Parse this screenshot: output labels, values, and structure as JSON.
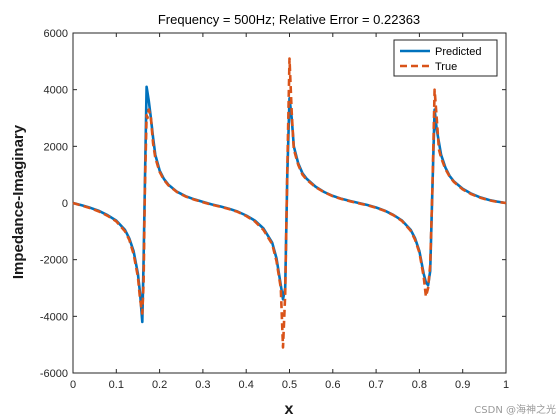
{
  "chart_data": {
    "type": "line",
    "title": "Frequency = 500Hz; Relative Error = 0.22363",
    "xlabel": "x",
    "ylabel": "Impedance-Imaginary",
    "xlim": [
      0,
      1
    ],
    "ylim": [
      -6000,
      6000
    ],
    "xticks": [
      0,
      0.1,
      0.2,
      0.3,
      0.4,
      0.5,
      0.6,
      0.7,
      0.8,
      0.9,
      1
    ],
    "xtick_labels": [
      "0",
      "0.1",
      "0.2",
      "0.3",
      "0.4",
      "0.5",
      "0.6",
      "0.7",
      "0.8",
      "0.9",
      "1"
    ],
    "yticks": [
      -6000,
      -4000,
      -2000,
      0,
      2000,
      4000,
      6000
    ],
    "ytick_labels": [
      "-6000",
      "-4000",
      "-2000",
      "0",
      "2000",
      "4000",
      "6000"
    ],
    "grid": false,
    "legend": "top-right",
    "series": [
      {
        "name": "Predicted",
        "style": "solid",
        "color": "#0072BD",
        "x": [
          0,
          0.02,
          0.04,
          0.06,
          0.08,
          0.1,
          0.12,
          0.13,
          0.14,
          0.15,
          0.155,
          0.16,
          0.163,
          0.166,
          0.17,
          0.175,
          0.18,
          0.185,
          0.19,
          0.2,
          0.21,
          0.22,
          0.24,
          0.26,
          0.28,
          0.3,
          0.32,
          0.34,
          0.36,
          0.38,
          0.4,
          0.42,
          0.44,
          0.46,
          0.47,
          0.48,
          0.485,
          0.49,
          0.495,
          0.5,
          0.505,
          0.51,
          0.52,
          0.53,
          0.54,
          0.56,
          0.58,
          0.6,
          0.62,
          0.64,
          0.66,
          0.68,
          0.7,
          0.72,
          0.74,
          0.76,
          0.78,
          0.79,
          0.8,
          0.81,
          0.815,
          0.82,
          0.825,
          0.83,
          0.835,
          0.84,
          0.85,
          0.86,
          0.87,
          0.88,
          0.9,
          0.92,
          0.94,
          0.96,
          0.98,
          1
        ],
        "y": [
          0,
          -80,
          -170,
          -280,
          -430,
          -620,
          -950,
          -1250,
          -1700,
          -2500,
          -3200,
          -4200,
          -2000,
          700,
          4100,
          3600,
          3000,
          2300,
          1700,
          1150,
          850,
          650,
          400,
          240,
          130,
          40,
          -50,
          -120,
          -200,
          -300,
          -440,
          -620,
          -900,
          -1400,
          -1950,
          -2900,
          -3400,
          -3000,
          1000,
          3700,
          3000,
          2000,
          1400,
          1050,
          850,
          580,
          390,
          250,
          150,
          70,
          0,
          -70,
          -160,
          -270,
          -420,
          -620,
          -950,
          -1250,
          -1700,
          -2500,
          -2800,
          -2900,
          -2400,
          500,
          3300,
          2600,
          1700,
          1250,
          950,
          760,
          500,
          330,
          200,
          110,
          50,
          0
        ]
      },
      {
        "name": "True",
        "style": "dashed",
        "color": "#D95319",
        "x": [
          0,
          0.02,
          0.04,
          0.06,
          0.08,
          0.1,
          0.12,
          0.13,
          0.14,
          0.15,
          0.155,
          0.16,
          0.163,
          0.166,
          0.17,
          0.172,
          0.175,
          0.18,
          0.185,
          0.19,
          0.2,
          0.21,
          0.22,
          0.24,
          0.26,
          0.28,
          0.3,
          0.32,
          0.34,
          0.36,
          0.38,
          0.4,
          0.42,
          0.44,
          0.46,
          0.47,
          0.48,
          0.485,
          0.49,
          0.495,
          0.5,
          0.505,
          0.51,
          0.52,
          0.53,
          0.54,
          0.56,
          0.58,
          0.6,
          0.62,
          0.64,
          0.66,
          0.68,
          0.7,
          0.72,
          0.74,
          0.76,
          0.78,
          0.79,
          0.8,
          0.81,
          0.815,
          0.82,
          0.825,
          0.83,
          0.835,
          0.84,
          0.845,
          0.85,
          0.86,
          0.87,
          0.88,
          0.9,
          0.92,
          0.94,
          0.96,
          0.98,
          1
        ],
        "y": [
          0,
          -90,
          -180,
          -300,
          -450,
          -650,
          -1000,
          -1300,
          -1800,
          -2600,
          -3400,
          -3900,
          -2800,
          500,
          3100,
          3000,
          3300,
          3000,
          2100,
          1600,
          1100,
          820,
          630,
          390,
          230,
          120,
          30,
          -60,
          -130,
          -210,
          -310,
          -460,
          -650,
          -950,
          -1450,
          -2050,
          -3000,
          -5100,
          -3200,
          1200,
          5100,
          3200,
          1900,
          1350,
          1000,
          820,
          560,
          380,
          240,
          140,
          60,
          -10,
          -80,
          -170,
          -280,
          -430,
          -640,
          -980,
          -1300,
          -1750,
          -2600,
          -3300,
          -3000,
          -2200,
          500,
          4000,
          3000,
          1900,
          1600,
          1200,
          930,
          740,
          480,
          310,
          190,
          100,
          40,
          0
        ]
      }
    ]
  },
  "watermark": "CSDN @海神之光"
}
